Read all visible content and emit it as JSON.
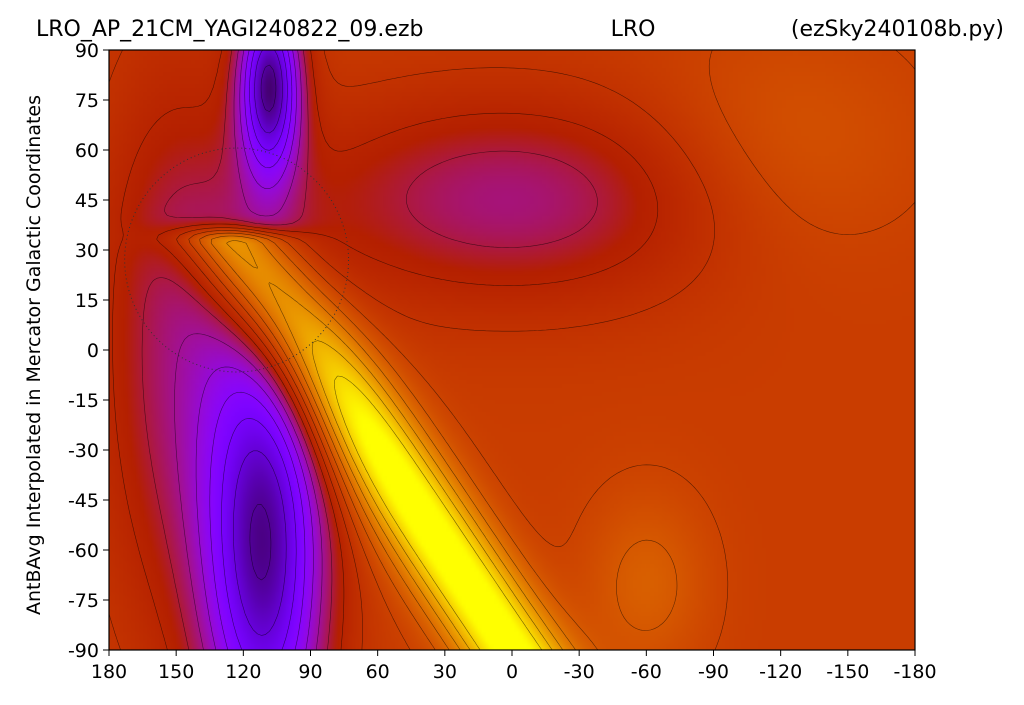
{
  "chart_data": {
    "type": "heatmap",
    "title_left": "LRO_AP_21CM_YAGI240822_09.ezb",
    "title_center": "LRO",
    "title_right": "(ezSky240108b.py)",
    "xlabel": "",
    "ylabel": "AntBAvg Interpolated in Mercator Galactic Coordinates",
    "xlim": [
      180,
      -180
    ],
    "ylim": [
      -90,
      90
    ],
    "x_ticks": [
      180,
      150,
      120,
      90,
      60,
      30,
      0,
      -30,
      -60,
      -90,
      -120,
      -150,
      -180
    ],
    "x_tick_labels": [
      "180",
      "150",
      "120",
      "90",
      "60",
      "30",
      "0",
      "-30",
      "-60",
      "-90",
      "-120",
      "-150",
      "-180"
    ],
    "y_ticks": [
      90,
      75,
      60,
      45,
      30,
      15,
      0,
      -15,
      -30,
      -45,
      -60,
      -75,
      -90
    ],
    "y_tick_labels": [
      "90",
      "75",
      "60",
      "45",
      "30",
      "15",
      "0",
      "-15",
      "-30",
      "-45",
      "-60",
      "-75",
      "-90"
    ],
    "colormap": "gnuplot",
    "colors": [
      "#000000",
      "#4b0082",
      "#8f1fff",
      "#a020e0",
      "#b8157a",
      "#c83a00",
      "#d46a00",
      "#f5e600"
    ],
    "features": [
      {
        "kind": "high",
        "level": 1.0,
        "lon": 10,
        "lat": -35
      },
      {
        "kind": "high",
        "level": 0.78,
        "lon": -90,
        "lat": -40
      },
      {
        "kind": "high",
        "level": 0.72,
        "lon": -110,
        "lat": 65
      },
      {
        "kind": "low",
        "level": 0.05,
        "lon": 108,
        "lat": -65
      },
      {
        "kind": "low",
        "level": 0.1,
        "lon": 108,
        "lat": 80
      },
      {
        "kind": "low",
        "level": 0.45,
        "lon": 0,
        "lat": 45
      }
    ],
    "overlay_circle": {
      "center_lon": 123,
      "center_lat": 27,
      "radius_deg": 50,
      "style": "dotted"
    }
  }
}
